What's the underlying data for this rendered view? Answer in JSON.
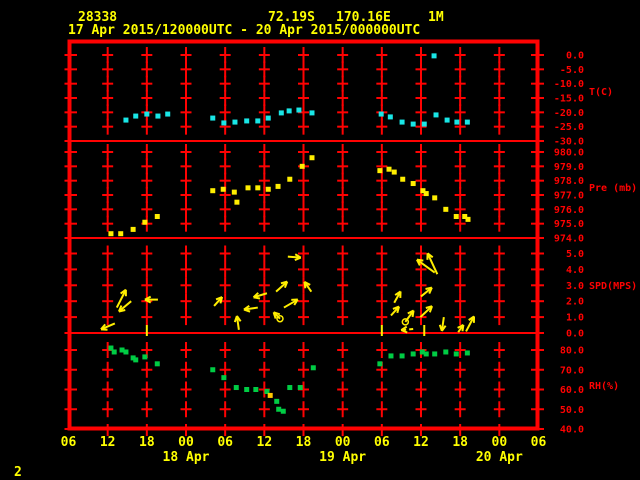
{
  "header": {
    "station_id": "28338",
    "latitude": "72.19S",
    "longitude": "170.16E",
    "level": "1M",
    "time_range": "17 Apr 2015/120000UTC - 20 Apr 2015/000000UTC"
  },
  "footer": {
    "page_number": "2"
  },
  "colors": {
    "background": "#000000",
    "grid_red": "#ff0202",
    "label_yellow": "#ffff00",
    "temperature_cyan": "#19e6e6",
    "pressure_yellow": "#ffee00",
    "wind_yellow": "#ffee00",
    "humidity_green": "#00cc44",
    "stray_orange": "#ffc800"
  },
  "panels": [
    {
      "id": "temperature",
      "label": "T(C)",
      "unit": "C",
      "tick_labels": [
        "0.0",
        "-5.0",
        "-10.0",
        "-15.0",
        "-20.0",
        "-25.0",
        "-30.0"
      ],
      "tick_values": [
        0,
        -5,
        -10,
        -15,
        -20,
        -25,
        -30
      ]
    },
    {
      "id": "pressure",
      "label": "Pre (mb)",
      "unit": "mb",
      "tick_labels": [
        "980.0",
        "979.0",
        "978.0",
        "977.0",
        "976.0",
        "975.0",
        "974.0"
      ],
      "tick_values": [
        980,
        979,
        978,
        977,
        976,
        975,
        974
      ]
    },
    {
      "id": "speed",
      "label": "SPD(MPS)",
      "unit": "MPS",
      "tick_labels": [
        "5.0",
        "4.0",
        "3.0",
        "2.0",
        "1.0",
        "0.0"
      ],
      "tick_values": [
        5,
        4,
        3,
        2,
        1,
        0
      ]
    },
    {
      "id": "humidity",
      "label": "RH(%)",
      "unit": "%",
      "tick_labels": [
        "80.0",
        "70.0",
        "60.0",
        "50.0",
        "40.0"
      ],
      "tick_values": [
        80,
        70,
        60,
        50,
        40
      ]
    }
  ],
  "x_axis": {
    "tick_labels": [
      "06",
      "12",
      "18",
      "00",
      "06",
      "12",
      "18",
      "00",
      "06",
      "12",
      "18",
      "00",
      "06"
    ],
    "tick_hours": [
      6,
      12,
      18,
      24,
      30,
      36,
      42,
      48,
      54,
      60,
      66,
      72,
      78
    ],
    "date_labels": [
      {
        "text": "18 Apr",
        "hour": 24
      },
      {
        "text": "19 Apr",
        "hour": 48
      },
      {
        "text": "20 Apr",
        "hour": 72
      }
    ]
  },
  "chart_data": [
    {
      "type": "scatter",
      "name": "temperature",
      "ylabel": "T(C)",
      "ylim": [
        -30,
        0
      ],
      "x_unit": "hours_since_17Apr_00UTC",
      "points": [
        [
          14.8,
          -22.7
        ],
        [
          16.3,
          -21.3
        ],
        [
          18.0,
          -20.6
        ],
        [
          19.7,
          -21.3
        ],
        [
          21.2,
          -20.6
        ],
        [
          28.1,
          -22.0
        ],
        [
          29.8,
          -23.7
        ],
        [
          31.5,
          -23.4
        ],
        [
          33.3,
          -23.0
        ],
        [
          35.0,
          -23.0
        ],
        [
          36.6,
          -22.0
        ],
        [
          38.6,
          -20.2
        ],
        [
          39.8,
          -19.5
        ],
        [
          41.3,
          -19.2
        ],
        [
          43.3,
          -20.2
        ],
        [
          53.9,
          -20.6
        ],
        [
          55.3,
          -21.6
        ],
        [
          57.1,
          -23.4
        ],
        [
          58.8,
          -24.1
        ],
        [
          60.5,
          -24.1
        ],
        [
          62.0,
          -0.3
        ],
        [
          62.3,
          -20.9
        ],
        [
          64.0,
          -22.7
        ],
        [
          65.5,
          -23.4
        ],
        [
          67.1,
          -23.4
        ]
      ]
    },
    {
      "type": "scatter",
      "name": "pressure",
      "ylabel": "Pre (mb)",
      "ylim": [
        974,
        980
      ],
      "x_unit": "hours_since_17Apr_00UTC",
      "points": [
        [
          12.5,
          974.3
        ],
        [
          14.0,
          974.3
        ],
        [
          15.9,
          974.6
        ],
        [
          17.7,
          975.1
        ],
        [
          19.6,
          975.5
        ],
        [
          28.1,
          977.3
        ],
        [
          29.7,
          977.4
        ],
        [
          31.4,
          977.2
        ],
        [
          31.8,
          976.5
        ],
        [
          33.5,
          977.5
        ],
        [
          35.0,
          977.5
        ],
        [
          36.6,
          977.4
        ],
        [
          38.1,
          977.6
        ],
        [
          39.9,
          978.1
        ],
        [
          41.8,
          979.0
        ],
        [
          43.3,
          979.6
        ],
        [
          53.7,
          978.7
        ],
        [
          55.1,
          978.8
        ],
        [
          55.9,
          978.6
        ],
        [
          57.2,
          978.1
        ],
        [
          58.8,
          977.8
        ],
        [
          60.3,
          977.3
        ],
        [
          60.8,
          977.1
        ],
        [
          62.1,
          976.8
        ],
        [
          63.8,
          976.0
        ],
        [
          65.4,
          975.5
        ],
        [
          66.7,
          975.5
        ],
        [
          67.2,
          975.3
        ]
      ]
    },
    {
      "type": "vector",
      "name": "wind_speed",
      "ylabel": "SPD(MPS)",
      "ylim": [
        0,
        5
      ],
      "x_unit": "hours_since_17Apr_00UTC",
      "arrows": [
        {
          "t": 13.1,
          "spd": 0.6,
          "dir": 203,
          "len": 15
        },
        {
          "t": 13.4,
          "spd": 1.6,
          "dir": 63,
          "len": 20
        },
        {
          "t": 15.6,
          "spd": 2.0,
          "dir": 220,
          "len": 16
        },
        {
          "t": 19.7,
          "spd": 2.1,
          "dir": 180,
          "len": 13
        },
        {
          "t": 28.3,
          "spd": 1.7,
          "dir": 48,
          "len": 12
        },
        {
          "t": 32.1,
          "spd": 0.2,
          "dir": 98,
          "len": 14
        },
        {
          "t": 35.0,
          "spd": 1.6,
          "dir": 188,
          "len": 14
        },
        {
          "t": 36.4,
          "spd": 2.5,
          "dir": 197,
          "len": 14
        },
        {
          "t": 37.8,
          "spd": 2.6,
          "dir": 42,
          "len": 15
        },
        {
          "t": 39.0,
          "spd": 1.6,
          "dir": 30,
          "len": 16
        },
        {
          "t": 39.6,
          "spd": 4.8,
          "dir": 356,
          "len": 13
        },
        {
          "t": 38.4,
          "spd": 0.9,
          "dir": 135,
          "len": 9,
          "style": "loop"
        },
        {
          "t": 43.2,
          "spd": 2.6,
          "dir": 125,
          "len": 12
        },
        {
          "t": 55.4,
          "spd": 1.1,
          "dir": 48,
          "len": 12
        },
        {
          "t": 55.9,
          "spd": 1.9,
          "dir": 61,
          "len": 13
        },
        {
          "t": 57.6,
          "spd": 0.7,
          "dir": 54,
          "len": 14,
          "style": "loop"
        },
        {
          "t": 60.0,
          "spd": 2.3,
          "dir": 39,
          "len": 14
        },
        {
          "t": 59.9,
          "spd": 1.0,
          "dir": 43,
          "len": 16
        },
        {
          "t": 62.5,
          "spd": 3.7,
          "dir": 115,
          "len": 23
        },
        {
          "t": 62.1,
          "spd": 3.8,
          "dir": 144,
          "len": 22
        },
        {
          "t": 63.5,
          "spd": 1.0,
          "dir": 262,
          "len": 14
        },
        {
          "t": 65.7,
          "spd": 0.05,
          "dir": 55,
          "len": 9
        },
        {
          "t": 66.9,
          "spd": 0.1,
          "dir": 62,
          "len": 17
        },
        {
          "t": 58.8,
          "spd": 0.25,
          "dir": 185,
          "len": 12,
          "style": "dashed"
        }
      ],
      "calm_marks_hours": [
        18.0,
        54.0,
        60.5
      ]
    },
    {
      "type": "scatter",
      "name": "relative_humidity",
      "ylabel": "RH(%)",
      "ylim": [
        40,
        80
      ],
      "x_unit": "hours_since_17Apr_00UTC",
      "points": [
        [
          12.5,
          81
        ],
        [
          13.0,
          79
        ],
        [
          14.2,
          80
        ],
        [
          14.8,
          79
        ],
        [
          15.9,
          76
        ],
        [
          16.3,
          75
        ],
        [
          17.7,
          76.5
        ],
        [
          19.6,
          73
        ],
        [
          28.1,
          70
        ],
        [
          29.8,
          66
        ],
        [
          31.7,
          61
        ],
        [
          33.3,
          60
        ],
        [
          34.7,
          60
        ],
        [
          36.4,
          59
        ],
        [
          37.9,
          54
        ],
        [
          38.2,
          50
        ],
        [
          38.9,
          49
        ],
        [
          39.9,
          61
        ],
        [
          41.5,
          61
        ],
        [
          43.5,
          71
        ],
        [
          53.7,
          73
        ],
        [
          55.4,
          77
        ],
        [
          57.1,
          77
        ],
        [
          58.8,
          78
        ],
        [
          60.2,
          79
        ],
        [
          60.8,
          78
        ],
        [
          62.1,
          78
        ],
        [
          63.8,
          79
        ],
        [
          65.4,
          78
        ],
        [
          67.1,
          78.5
        ]
      ],
      "stray_point": {
        "t": 36.9,
        "rh": 57
      }
    }
  ]
}
